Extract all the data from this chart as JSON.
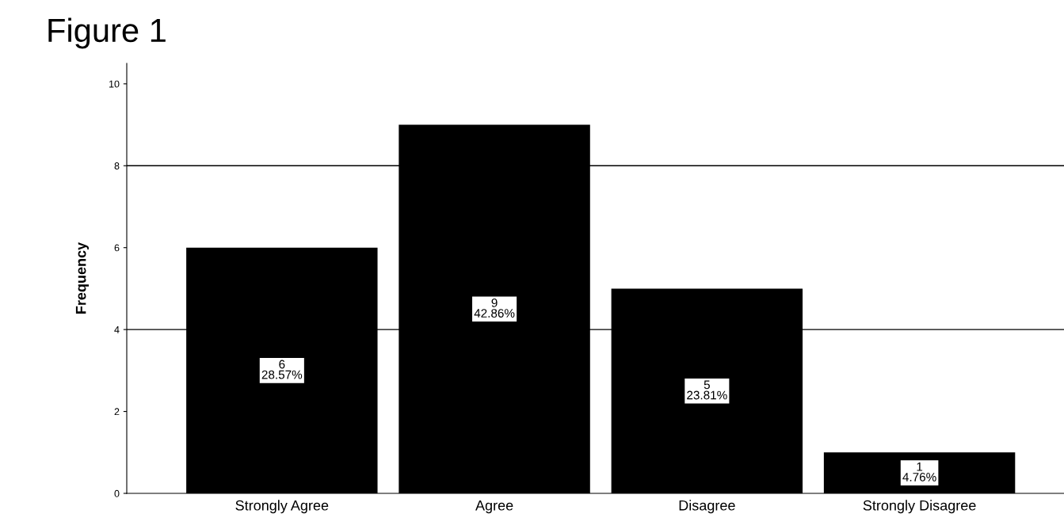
{
  "chart_data": {
    "type": "bar",
    "title": "Figure 1",
    "ylabel": "Frequency",
    "categories": [
      "Strongly Agree",
      "Agree",
      "Disagree",
      "Strongly Disagree"
    ],
    "values": [
      6,
      9,
      5,
      1
    ],
    "value_labels": [
      "6\n28.57%",
      "9\n42.86%",
      "5\n23.81%",
      "1\n4.76%"
    ],
    "color": "#000000",
    "ylim": [
      0,
      10.5
    ],
    "yticks": [
      0,
      2,
      4,
      6,
      8,
      10
    ],
    "ref_lines": [
      {
        "axis": "y",
        "value": 4,
        "color": "#000000"
      },
      {
        "axis": "y",
        "value": 8,
        "color": "#000000"
      }
    ],
    "grid": false,
    "legend": false
  }
}
